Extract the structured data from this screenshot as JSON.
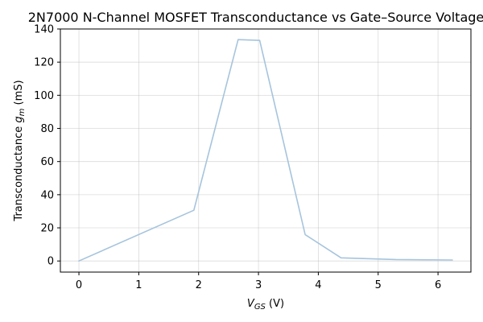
{
  "chart_data": {
    "type": "line",
    "title": "2N7000 N-Channel MOSFET Transconductance vs Gate–Source Voltage",
    "xlabel": {
      "main": "V",
      "sub": "GS",
      "unit": " (V)"
    },
    "ylabel": {
      "prefix": "Transconductance ",
      "main": "g",
      "sub": "m",
      "unit": " (mS)"
    },
    "xlim": [
      -0.31,
      6.55
    ],
    "ylim": [
      -6.7,
      140
    ],
    "xticks": [
      0,
      1,
      2,
      3,
      4,
      5,
      6
    ],
    "yticks": [
      0,
      20,
      40,
      60,
      80,
      100,
      120,
      140
    ],
    "grid": true,
    "series": [
      {
        "color": "#a6c4dd",
        "x": [
          0,
          1.92,
          2.66,
          3.02,
          3.78,
          4.38,
          5.3,
          6.24
        ],
        "y": [
          0,
          30.6,
          133.6,
          133.1,
          15.9,
          1.9,
          0.9,
          0.6
        ]
      }
    ]
  }
}
